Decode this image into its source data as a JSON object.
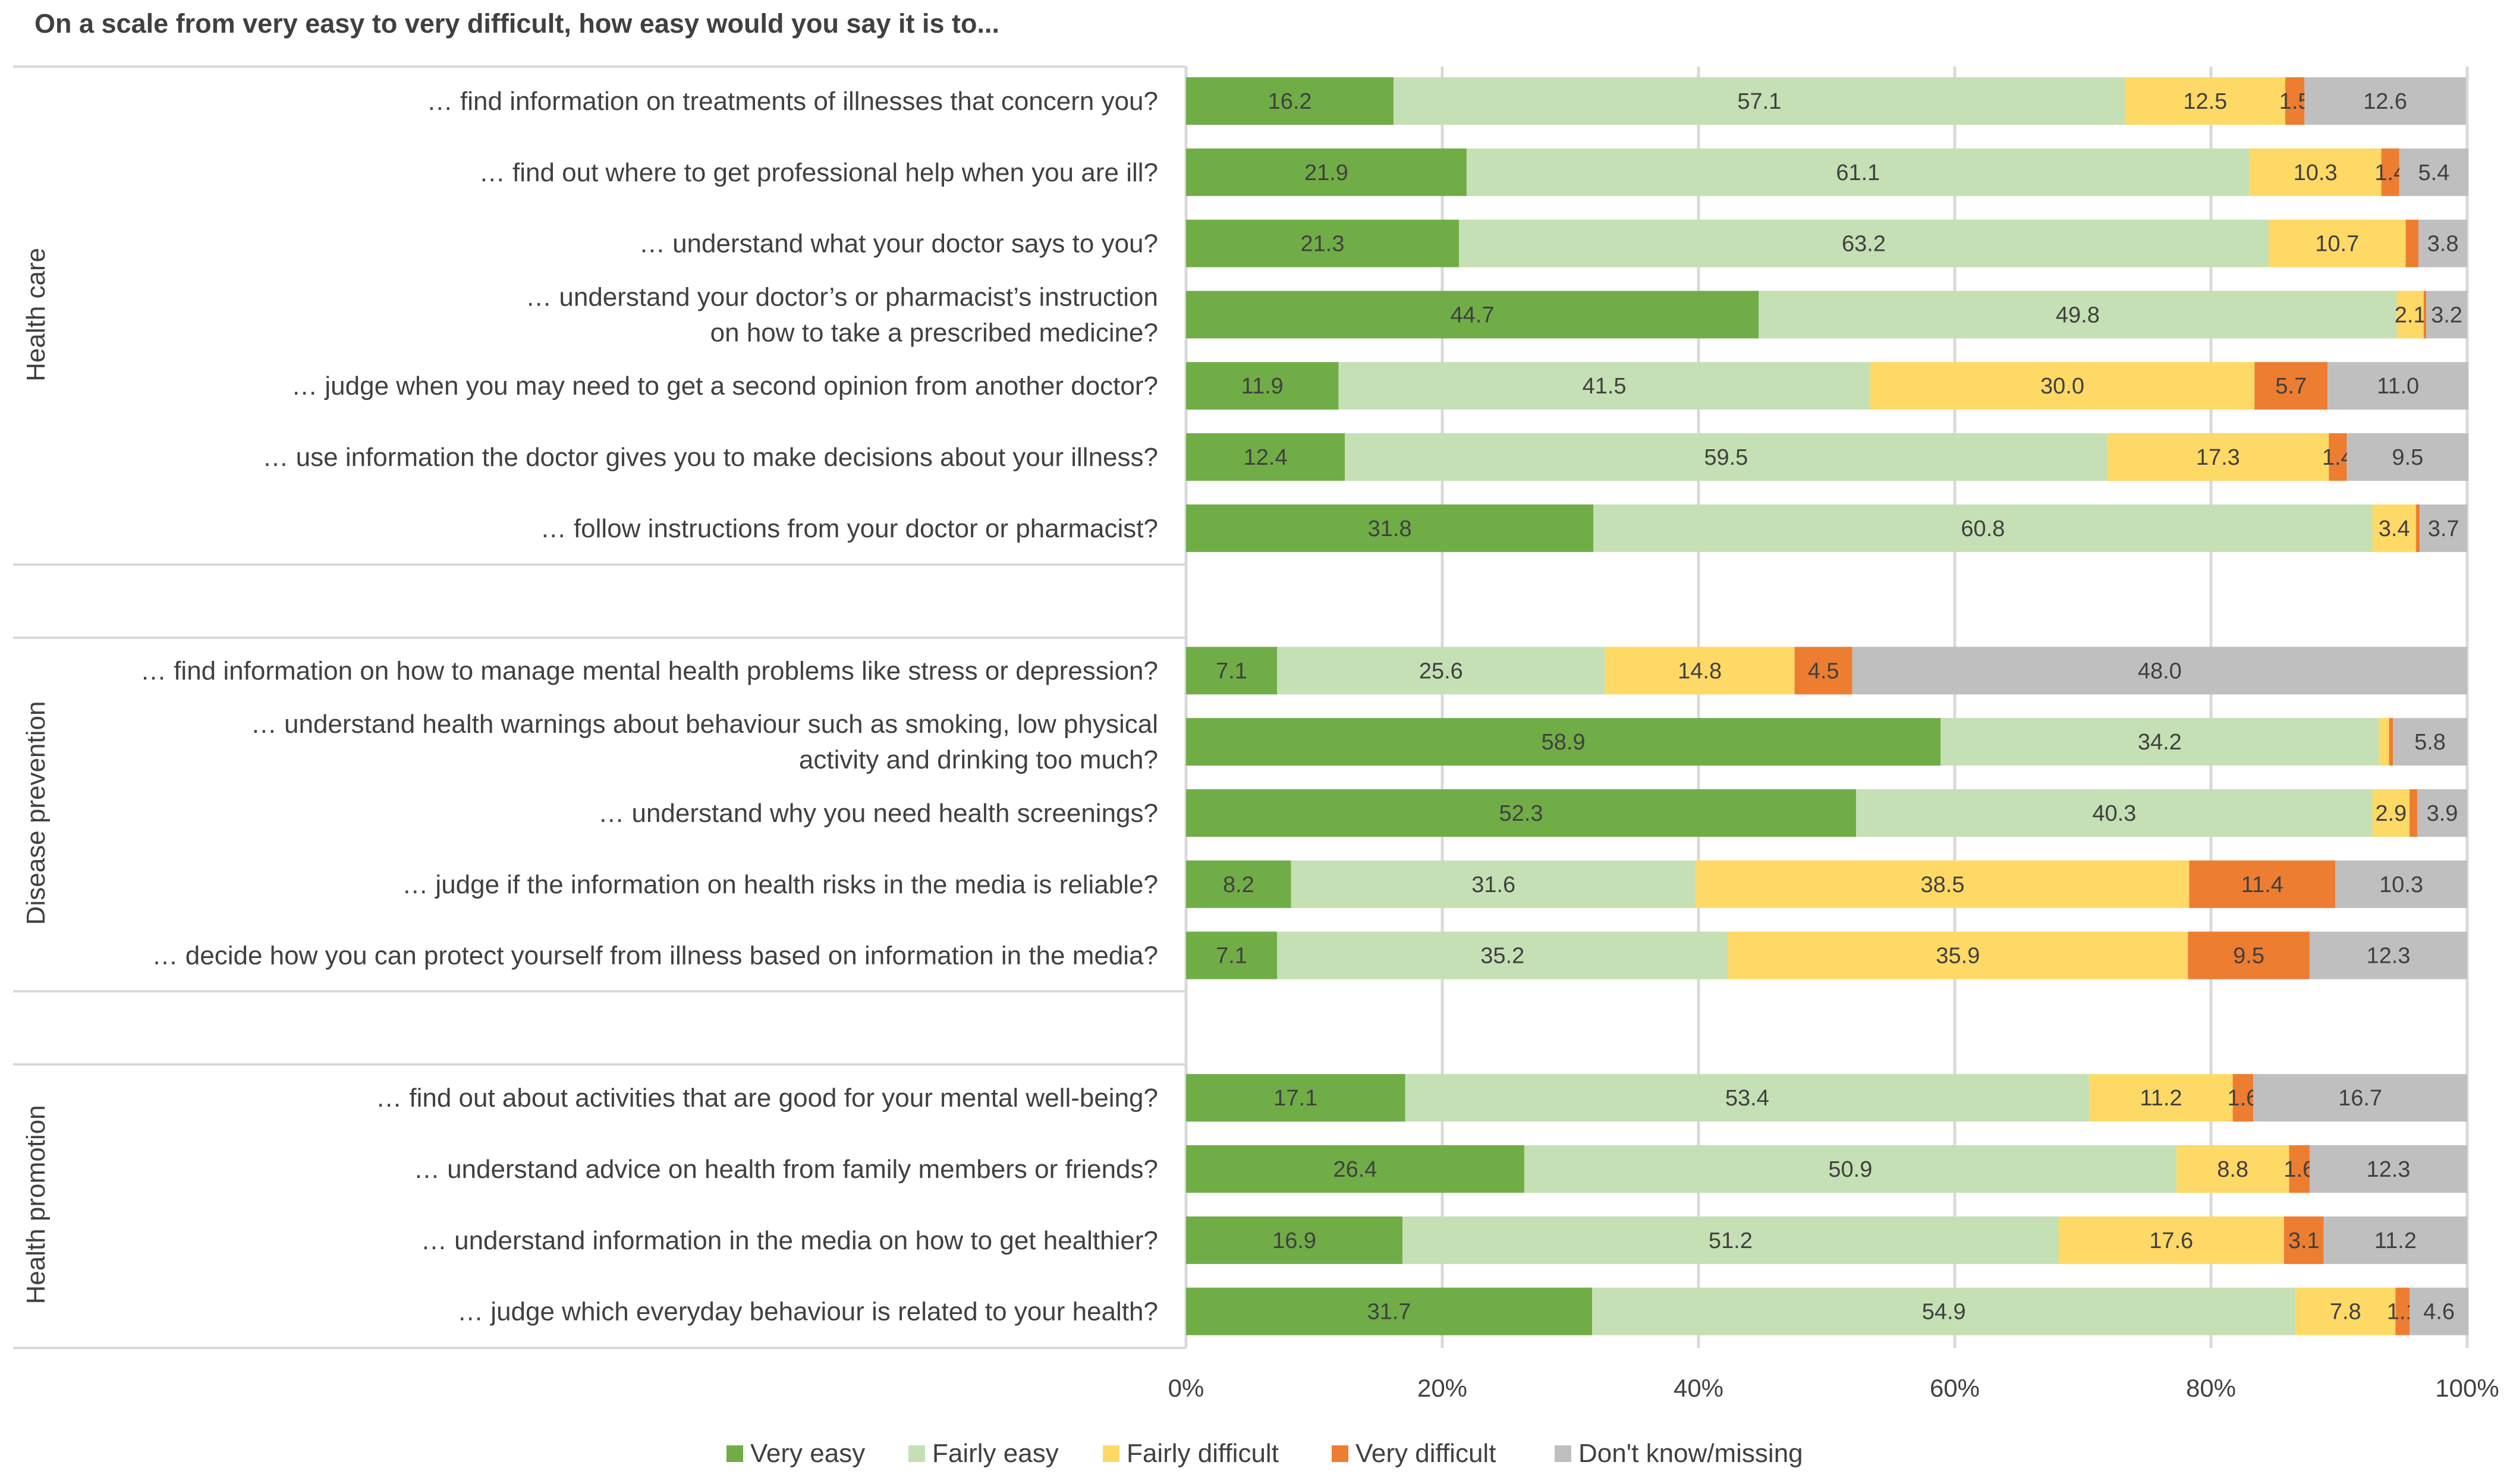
{
  "chart_data": {
    "type": "bar",
    "orientation": "horizontal",
    "stacked": true,
    "title": "On a scale from very easy to very difficult, how easy would you say it is to...",
    "xlabel": "",
    "ylabel": "",
    "xlim": [
      0,
      100
    ],
    "x_ticks": [
      "0%",
      "20%",
      "40%",
      "60%",
      "80%",
      "100%"
    ],
    "grid": "vertical",
    "legend_position": "bottom",
    "series_names": [
      "Very easy",
      "Fairly easy",
      "Fairly difficult",
      "Very difficult",
      "Don't know/missing"
    ],
    "colors": [
      "#70ad47",
      "#c5e0b4",
      "#ffd966",
      "#ed7d31",
      "#bfbfbf"
    ],
    "groups": [
      {
        "name": "Health care",
        "items": [
          {
            "label": [
              "… find information on treatments of illnesses that concern you?"
            ],
            "values": [
              16.2,
              57.1,
              12.5,
              1.5,
              12.6
            ],
            "labels": [
              "16.2",
              "57.1",
              "12.5",
              "1.5",
              "12.6"
            ]
          },
          {
            "label": [
              "… find out where to get professional help when you are ill?"
            ],
            "values": [
              21.9,
              61.1,
              10.3,
              1.4,
              5.4
            ],
            "labels": [
              "21.9",
              "61.1",
              "10.3",
              "1.4",
              "5.4"
            ]
          },
          {
            "label": [
              "… understand what your doctor says to you?"
            ],
            "values": [
              21.3,
              63.2,
              10.7,
              1.0,
              3.8
            ],
            "labels": [
              "21.3",
              "63.2",
              "10.7",
              null,
              "3.8"
            ]
          },
          {
            "label": [
              "… understand your doctor’s or pharmacist’s instruction",
              "on how to take a prescribed medicine?"
            ],
            "values": [
              44.7,
              49.8,
              2.1,
              0.2,
              3.2
            ],
            "labels": [
              "44.7",
              "49.8",
              "2.1",
              null,
              "3.2"
            ]
          },
          {
            "label": [
              "… judge when you may need to get a second opinion from another doctor?"
            ],
            "values": [
              11.9,
              41.5,
              30.0,
              5.7,
              11.0
            ],
            "labels": [
              "11.9",
              "41.5",
              "30.0",
              "5.7",
              "11.0"
            ]
          },
          {
            "label": [
              "… use information the doctor gives you to make decisions about your illness?"
            ],
            "values": [
              12.4,
              59.5,
              17.3,
              1.4,
              9.5
            ],
            "labels": [
              "12.4",
              "59.5",
              "17.3",
              "1.4",
              "9.5"
            ]
          },
          {
            "label": [
              "… follow instructions from your doctor or pharmacist?"
            ],
            "values": [
              31.8,
              60.8,
              3.4,
              0.3,
              3.7
            ],
            "labels": [
              "31.8",
              "60.8",
              "3.4",
              null,
              "3.7"
            ]
          }
        ]
      },
      {
        "name": "Disease prevention",
        "items": [
          {
            "label": [
              "… find information on how to manage mental health problems like stress or depression?"
            ],
            "values": [
              7.1,
              25.6,
              14.8,
              4.5,
              48.0
            ],
            "labels": [
              "7.1",
              "25.6",
              "14.8",
              "4.5",
              "48.0"
            ]
          },
          {
            "label": [
              "… understand health warnings about behaviour such as smoking, low physical",
              "activity and drinking too much?"
            ],
            "values": [
              58.9,
              34.2,
              0.8,
              0.3,
              5.8
            ],
            "labels": [
              "58.9",
              "34.2",
              null,
              null,
              "5.8"
            ]
          },
          {
            "label": [
              "… understand why you need health screenings?"
            ],
            "values": [
              52.3,
              40.3,
              2.9,
              0.6,
              3.9
            ],
            "labels": [
              "52.3",
              "40.3",
              "2.9",
              null,
              "3.9"
            ]
          },
          {
            "label": [
              "… judge if the information on health risks in the media is reliable?"
            ],
            "values": [
              8.2,
              31.6,
              38.5,
              11.4,
              10.3
            ],
            "labels": [
              "8.2",
              "31.6",
              "38.5",
              "11.4",
              "10.3"
            ]
          },
          {
            "label": [
              "… decide how you can protect yourself from illness based on information in the media?"
            ],
            "values": [
              7.1,
              35.2,
              35.9,
              9.5,
              12.3
            ],
            "labels": [
              "7.1",
              "35.2",
              "35.9",
              "9.5",
              "12.3"
            ]
          }
        ]
      },
      {
        "name": "Health promotion",
        "items": [
          {
            "label": [
              "… find out about activities that are good for your mental well-being?"
            ],
            "values": [
              17.1,
              53.4,
              11.2,
              1.6,
              16.7
            ],
            "labels": [
              "17.1",
              "53.4",
              "11.2",
              "1.6",
              "16.7"
            ]
          },
          {
            "label": [
              "… understand advice on health from family members or friends?"
            ],
            "values": [
              26.4,
              50.9,
              8.8,
              1.6,
              12.3
            ],
            "labels": [
              "26.4",
              "50.9",
              "8.8",
              "1.6",
              "12.3"
            ]
          },
          {
            "label": [
              "… understand information in the media on how to get healthier?"
            ],
            "values": [
              16.9,
              51.2,
              17.6,
              3.1,
              11.2
            ],
            "labels": [
              "16.9",
              "51.2",
              "17.6",
              "3.1",
              "11.2"
            ]
          },
          {
            "label": [
              "… judge which everyday behaviour is related to your health?"
            ],
            "values": [
              31.7,
              54.9,
              7.8,
              1.1,
              4.6
            ],
            "labels": [
              "31.7",
              "54.9",
              "7.8",
              "1.1",
              "4.6"
            ]
          }
        ]
      }
    ]
  }
}
